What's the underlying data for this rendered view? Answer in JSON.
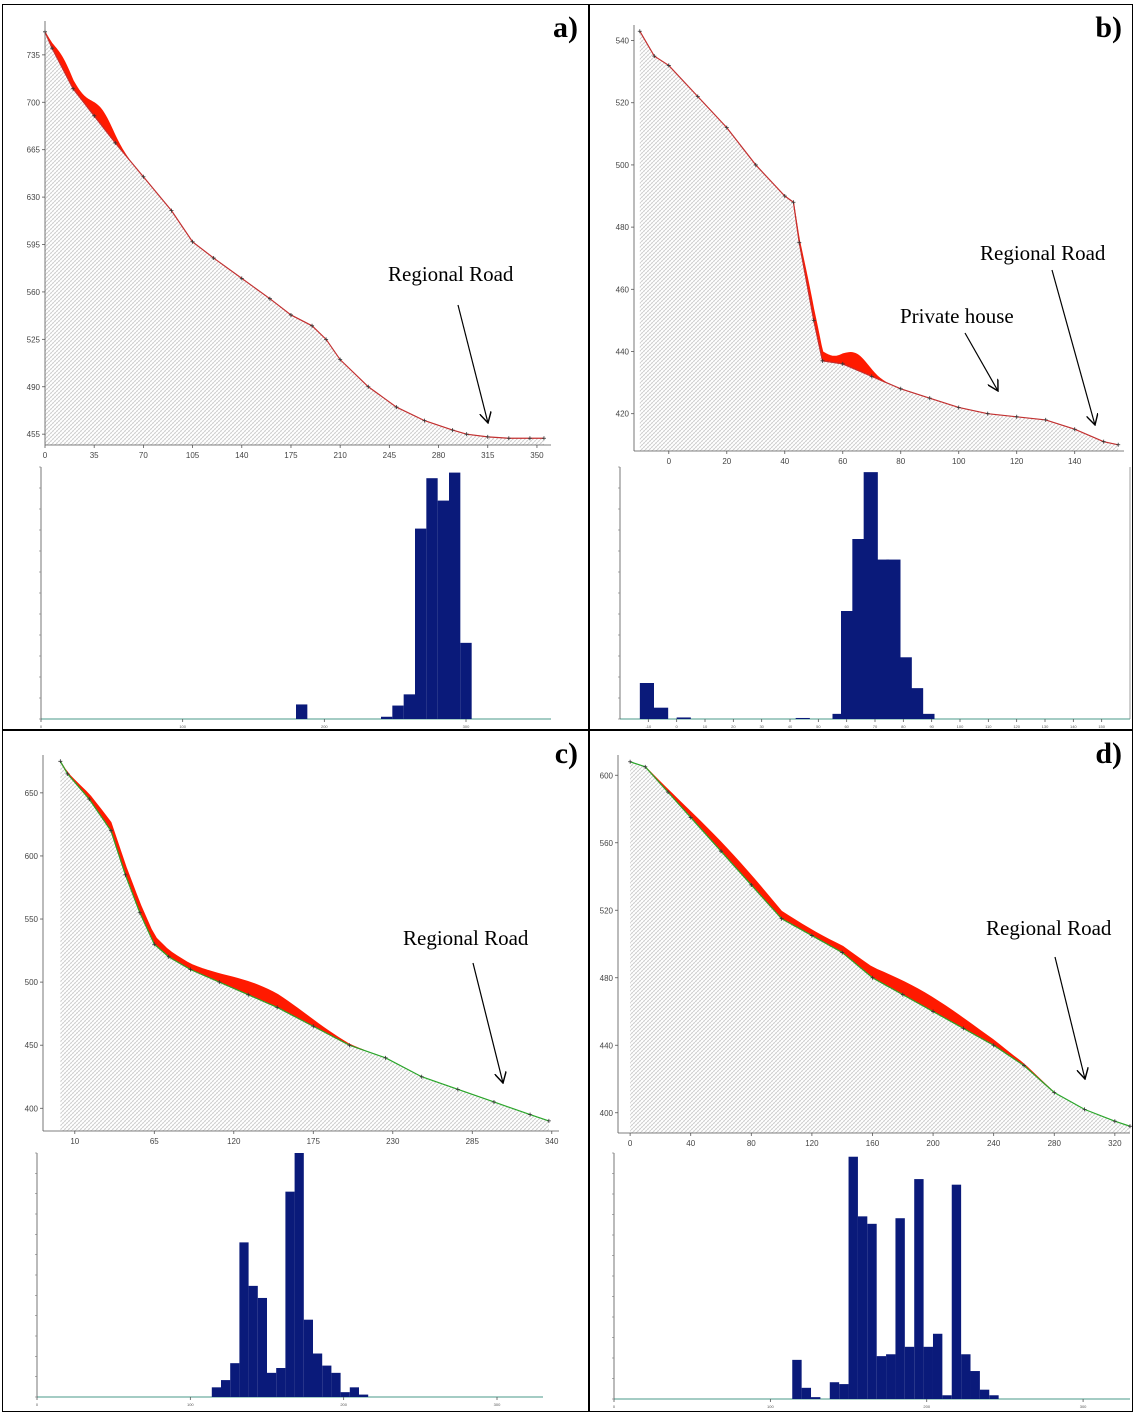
{
  "chart_data": [
    {
      "panel": "a)",
      "type": "line",
      "profile": {
        "xticks": [
          0,
          35,
          70,
          105,
          140,
          175,
          210,
          245,
          280,
          315,
          350
        ],
        "yticks": [
          455,
          490,
          525,
          560,
          595,
          630,
          665,
          700,
          735
        ],
        "xlim": [
          0,
          360
        ],
        "ylim": [
          447,
          760
        ],
        "ground_x": [
          0,
          5,
          20,
          35,
          50,
          70,
          90,
          105,
          120,
          140,
          160,
          175,
          190,
          200,
          210,
          230,
          250,
          270,
          290,
          300,
          315,
          330,
          345,
          355
        ],
        "ground_y": [
          752,
          740,
          710,
          690,
          670,
          645,
          620,
          597,
          585,
          570,
          555,
          543,
          535,
          525,
          510,
          490,
          475,
          465,
          458,
          455,
          453,
          452,
          452,
          452
        ],
        "runout_band": [
          0,
          60
        ],
        "annotation": "Regional Road",
        "road_x": 315
      },
      "histogram": {
        "x_start": 0,
        "x_end": 360,
        "bin_width": 8,
        "xticks": [
          0,
          100,
          200,
          300
        ],
        "bars": [
          {
            "x": 180,
            "value": 130
          },
          {
            "x": 240,
            "value": 20
          },
          {
            "x": 248,
            "value": 120
          },
          {
            "x": 256,
            "value": 220
          },
          {
            "x": 264,
            "value": 1700
          },
          {
            "x": 272,
            "value": 2150
          },
          {
            "x": 280,
            "value": 1950
          },
          {
            "x": 288,
            "value": 2200
          },
          {
            "x": 296,
            "value": 680
          }
        ],
        "ymax": 2250
      }
    },
    {
      "panel": "b)",
      "type": "line",
      "profile": {
        "xticks": [
          0,
          20,
          40,
          60,
          80,
          100,
          120,
          140
        ],
        "yticks": [
          420,
          440,
          460,
          480,
          500,
          520,
          540
        ],
        "xlim": [
          -12,
          157
        ],
        "ylim": [
          408,
          545
        ],
        "ground_x": [
          -10,
          -5,
          0,
          10,
          20,
          30,
          40,
          43,
          45,
          50,
          53,
          60,
          70,
          80,
          90,
          100,
          110,
          120,
          130,
          140,
          150,
          155
        ],
        "ground_y": [
          543,
          535,
          532,
          522,
          512,
          500,
          490,
          488,
          475,
          450,
          437,
          436,
          432,
          428,
          425,
          422,
          420,
          419,
          418,
          415,
          411,
          410
        ],
        "runout_band": [
          43,
          75
        ],
        "annotation": "Regional Road",
        "annotation_2": "Private house",
        "road_x": 148,
        "house_x": 113
      },
      "histogram": {
        "x_start": -20,
        "x_end": 160,
        "bin_width": 5,
        "xticks": [
          -10,
          0,
          10,
          20,
          30,
          40,
          50,
          60,
          70,
          80,
          90,
          100,
          110,
          120,
          130,
          140,
          150
        ],
        "bars": [
          {
            "x": -13,
            "value": 350
          },
          {
            "x": -8,
            "value": 110
          },
          {
            "x": 0,
            "value": 15
          },
          {
            "x": 42,
            "value": 10
          },
          {
            "x": 55,
            "value": 50
          },
          {
            "x": 58,
            "value": 1050
          },
          {
            "x": 62,
            "value": 1750
          },
          {
            "x": 66,
            "value": 2400
          },
          {
            "x": 70,
            "value": 1550
          },
          {
            "x": 74,
            "value": 1550
          },
          {
            "x": 78,
            "value": 600
          },
          {
            "x": 82,
            "value": 300
          },
          {
            "x": 86,
            "value": 50
          }
        ],
        "ymax": 2450
      }
    },
    {
      "panel": "c)",
      "type": "line",
      "profile": {
        "xticks": [
          10,
          65,
          120,
          175,
          230,
          285,
          340
        ],
        "yticks": [
          400,
          450,
          500,
          550,
          600,
          650
        ],
        "xlim": [
          -12,
          345
        ],
        "ylim": [
          382,
          680
        ],
        "ground_x": [
          0,
          5,
          20,
          35,
          45,
          55,
          65,
          75,
          90,
          110,
          130,
          150,
          175,
          200,
          225,
          250,
          275,
          300,
          325,
          338
        ],
        "ground_y": [
          675,
          665,
          645,
          620,
          585,
          555,
          530,
          520,
          510,
          500,
          490,
          480,
          465,
          450,
          440,
          425,
          415,
          405,
          395,
          390
        ],
        "runout_band": [
          0,
          210
        ],
        "annotation": "Regional Road",
        "road_x": 310
      },
      "histogram": {
        "x_start": 0,
        "x_end": 330,
        "bin_width": 6,
        "xticks": [
          0,
          100,
          200,
          300
        ],
        "bars": [
          {
            "x": 114,
            "value": 40
          },
          {
            "x": 120,
            "value": 70
          },
          {
            "x": 126,
            "value": 140
          },
          {
            "x": 132,
            "value": 640
          },
          {
            "x": 138,
            "value": 460
          },
          {
            "x": 144,
            "value": 410
          },
          {
            "x": 150,
            "value": 100
          },
          {
            "x": 156,
            "value": 120
          },
          {
            "x": 162,
            "value": 850
          },
          {
            "x": 168,
            "value": 1010
          },
          {
            "x": 174,
            "value": 320
          },
          {
            "x": 180,
            "value": 180
          },
          {
            "x": 186,
            "value": 130
          },
          {
            "x": 192,
            "value": 100
          },
          {
            "x": 198,
            "value": 20
          },
          {
            "x": 204,
            "value": 40
          },
          {
            "x": 210,
            "value": 10
          }
        ],
        "ymax": 1010
      }
    },
    {
      "panel": "d)",
      "type": "line",
      "profile": {
        "xticks": [
          0,
          40,
          80,
          120,
          160,
          200,
          240,
          280,
          320
        ],
        "yticks": [
          400,
          440,
          480,
          520,
          560,
          600
        ],
        "xlim": [
          -8,
          330
        ],
        "ylim": [
          388,
          612
        ],
        "ground_x": [
          0,
          10,
          25,
          40,
          60,
          80,
          100,
          120,
          140,
          160,
          180,
          200,
          220,
          240,
          260,
          280,
          300,
          320,
          330
        ],
        "ground_y": [
          608,
          605,
          590,
          575,
          555,
          535,
          515,
          505,
          495,
          480,
          470,
          460,
          450,
          440,
          428,
          412,
          402,
          395,
          392
        ],
        "runout_band": [
          10,
          280
        ],
        "annotation": "Regional Road",
        "road_x": 300
      },
      "histogram": {
        "x_start": 0,
        "x_end": 330,
        "bin_width": 6,
        "xticks": [
          0,
          100,
          200,
          300
        ],
        "bars": [
          {
            "x": 114,
            "value": 210
          },
          {
            "x": 120,
            "value": 60
          },
          {
            "x": 126,
            "value": 10
          },
          {
            "x": 138,
            "value": 90
          },
          {
            "x": 144,
            "value": 80
          },
          {
            "x": 150,
            "value": 1300
          },
          {
            "x": 156,
            "value": 980
          },
          {
            "x": 162,
            "value": 940
          },
          {
            "x": 168,
            "value": 230
          },
          {
            "x": 174,
            "value": 240
          },
          {
            "x": 180,
            "value": 970
          },
          {
            "x": 186,
            "value": 280
          },
          {
            "x": 192,
            "value": 1180
          },
          {
            "x": 198,
            "value": 280
          },
          {
            "x": 204,
            "value": 350
          },
          {
            "x": 210,
            "value": 20
          },
          {
            "x": 216,
            "value": 1150
          },
          {
            "x": 222,
            "value": 240
          },
          {
            "x": 228,
            "value": 150
          },
          {
            "x": 234,
            "value": 50
          },
          {
            "x": 240,
            "value": 20
          }
        ],
        "ymax": 1320
      }
    }
  ],
  "colors": {
    "runout": "#ff1a00",
    "ground_line": "#c23030",
    "green_line": "#2aa52a",
    "bars": "#0a1a7a",
    "hatch": "#b8b8b8"
  },
  "icons": [
    "arrow-icon"
  ]
}
